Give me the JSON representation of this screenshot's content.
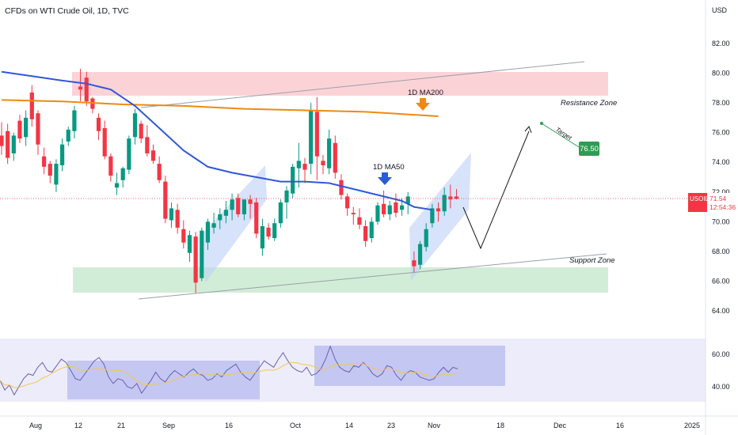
{
  "chart_data": {
    "type": "candlestick",
    "title": "CFDs on WTI Crude Oil, 1D, TVC",
    "currency_label": "USD",
    "price_axis": {
      "ticks": [
        "82.00",
        "80.00",
        "78.00",
        "76.00",
        "74.00",
        "72.00",
        "70.00",
        "68.00",
        "66.00",
        "64.00"
      ],
      "range": [
        62.5,
        84.0
      ]
    },
    "rsi_axis": {
      "ticks": [
        "60.00",
        "40.00"
      ]
    },
    "x_ticks": [
      "Aug",
      "12",
      "21",
      "Sep",
      "16",
      "Oct",
      "14",
      "23",
      "Nov",
      "18",
      "Dec",
      "16",
      "2025"
    ],
    "last_price": {
      "symbol": "USOIL",
      "price": "71.54",
      "countdown": "12:54:36"
    },
    "annotations": {
      "resistance_zone": {
        "label": "Resistance Zone",
        "range": [
          78.45,
          80.05
        ]
      },
      "support_zone": {
        "label": "Support Zone",
        "range": [
          65.25,
          66.95
        ]
      },
      "ma200_label": "1D MA200",
      "ma50_label": "1D MA50",
      "target_label": "Target",
      "target_price": "76.50"
    },
    "series": [
      {
        "name": "1D MA200",
        "color": "#f0890f",
        "values": [
          [
            0,
            78.2
          ],
          [
            10,
            78.1
          ],
          [
            20,
            77.9
          ],
          [
            30,
            77.8
          ],
          [
            40,
            77.6
          ],
          [
            50,
            77.5
          ],
          [
            60,
            77.4
          ],
          [
            72,
            77.1
          ]
        ]
      },
      {
        "name": "1D MA50",
        "color": "#3058d8",
        "values": [
          [
            0,
            80.1
          ],
          [
            5,
            79.8
          ],
          [
            10,
            79.5
          ],
          [
            14,
            79.3
          ],
          [
            18,
            78.9
          ],
          [
            22,
            77.8
          ],
          [
            26,
            76.3
          ],
          [
            30,
            74.8
          ],
          [
            34,
            73.7
          ],
          [
            38,
            73.3
          ],
          [
            42,
            73.0
          ],
          [
            46,
            72.7
          ],
          [
            50,
            72.7
          ],
          [
            54,
            72.6
          ],
          [
            58,
            72.2
          ],
          [
            62,
            71.8
          ],
          [
            66,
            71.4
          ],
          [
            68,
            71.0
          ],
          [
            71,
            70.8
          ]
        ]
      }
    ],
    "ohlc": [
      [
        75.8,
        76.7,
        74.5,
        75.1
      ],
      [
        76.1,
        76.6,
        73.9,
        74.3
      ],
      [
        74.6,
        76.0,
        74.1,
        75.8
      ],
      [
        76.8,
        77.2,
        75.3,
        75.6
      ],
      [
        75.7,
        77.5,
        75.1,
        77.0
      ],
      [
        78.7,
        79.2,
        76.4,
        76.9
      ],
      [
        77.3,
        77.5,
        74.5,
        75.2
      ],
      [
        74.4,
        75.0,
        73.2,
        73.7
      ],
      [
        73.9,
        74.1,
        72.6,
        73.1
      ],
      [
        72.5,
        74.2,
        72.0,
        73.9
      ],
      [
        73.8,
        75.6,
        73.4,
        75.2
      ],
      [
        75.4,
        76.4,
        75.1,
        76.2
      ],
      [
        76.1,
        77.8,
        75.6,
        77.5
      ],
      [
        79.1,
        80.3,
        78.1,
        78.9
      ],
      [
        79.7,
        80.1,
        77.8,
        78.1
      ],
      [
        78.3,
        78.4,
        77.3,
        77.6
      ],
      [
        77.0,
        77.3,
        75.5,
        76.1
      ],
      [
        76.3,
        76.8,
        74.2,
        74.4
      ],
      [
        74.4,
        74.6,
        72.7,
        73.1
      ],
      [
        72.3,
        73.3,
        71.8,
        72.6
      ],
      [
        72.8,
        73.7,
        72.3,
        73.6
      ],
      [
        73.5,
        75.8,
        73.2,
        75.6
      ],
      [
        75.7,
        77.6,
        75.2,
        77.3
      ],
      [
        76.6,
        76.8,
        75.3,
        75.6
      ],
      [
        75.7,
        76.5,
        74.4,
        74.6
      ],
      [
        74.8,
        75.2,
        73.9,
        74.1
      ],
      [
        73.9,
        74.4,
        72.6,
        72.8
      ],
      [
        72.7,
        73.1,
        69.9,
        70.2
      ],
      [
        70.1,
        71.3,
        69.6,
        70.9
      ],
      [
        70.8,
        71.2,
        69.2,
        69.6
      ],
      [
        69.5,
        70.1,
        68.2,
        68.6
      ],
      [
        67.9,
        69.4,
        67.3,
        69.1
      ],
      [
        69.0,
        69.3,
        65.2,
        65.9
      ],
      [
        66.2,
        69.6,
        66.0,
        69.4
      ],
      [
        68.6,
        70.2,
        68.1,
        70.0
      ],
      [
        69.6,
        70.6,
        69.2,
        69.9
      ],
      [
        70.1,
        70.9,
        69.5,
        70.5
      ],
      [
        70.4,
        71.4,
        69.9,
        70.8
      ],
      [
        70.8,
        71.9,
        70.1,
        71.5
      ],
      [
        71.6,
        71.9,
        70.3,
        70.5
      ],
      [
        70.5,
        71.5,
        70.1,
        71.5
      ],
      [
        71.5,
        71.8,
        70.2,
        71.2
      ],
      [
        71.3,
        71.6,
        68.9,
        69.2
      ],
      [
        68.2,
        70.2,
        67.7,
        69.7
      ],
      [
        69.6,
        69.9,
        68.8,
        69.0
      ],
      [
        68.9,
        70.2,
        68.7,
        69.9
      ],
      [
        69.9,
        71.5,
        69.6,
        71.3
      ],
      [
        71.3,
        72.4,
        70.2,
        72.1
      ],
      [
        71.9,
        73.9,
        71.6,
        73.7
      ],
      [
        73.6,
        75.3,
        72.3,
        74.1
      ],
      [
        73.9,
        74.3,
        72.6,
        73.5
      ],
      [
        73.9,
        78.0,
        73.2,
        77.5
      ],
      [
        77.4,
        78.4,
        72.8,
        74.4
      ],
      [
        74.1,
        74.5,
        73.2,
        73.8
      ],
      [
        73.6,
        76.2,
        73.2,
        75.6
      ],
      [
        75.3,
        75.8,
        72.9,
        73.3
      ],
      [
        72.8,
        73.2,
        71.5,
        71.8
      ],
      [
        71.7,
        71.9,
        70.4,
        70.9
      ],
      [
        70.6,
        71.0,
        69.8,
        70.5
      ],
      [
        70.3,
        70.9,
        69.5,
        69.8
      ],
      [
        69.7,
        70.1,
        68.3,
        68.7
      ],
      [
        68.9,
        70.3,
        68.6,
        70.0
      ],
      [
        70.0,
        71.3,
        69.8,
        71.1
      ],
      [
        71.2,
        72.1,
        70.3,
        70.5
      ],
      [
        70.5,
        71.4,
        70.1,
        71.1
      ],
      [
        71.3,
        71.9,
        70.3,
        70.6
      ],
      [
        70.8,
        71.6,
        70.4,
        71.1
      ],
      [
        71.2,
        72.0,
        70.5,
        71.7
      ],
      [
        67.4,
        68.0,
        66.6,
        67.0
      ],
      [
        67.1,
        68.7,
        66.8,
        68.5
      ],
      [
        68.3,
        69.9,
        68.0,
        69.5
      ],
      [
        69.9,
        71.2,
        69.6,
        70.9
      ],
      [
        70.9,
        71.3,
        70.0,
        70.7
      ],
      [
        70.7,
        72.3,
        70.4,
        71.8
      ],
      [
        71.7,
        72.5,
        70.9,
        71.5
      ],
      [
        71.7,
        72.2,
        71.5,
        71.54
      ]
    ],
    "rsi": {
      "values": [
        44,
        38,
        41,
        35,
        40,
        45,
        48,
        47,
        52,
        55,
        50,
        49,
        53,
        57,
        55,
        50,
        45,
        44,
        48,
        52,
        56,
        58,
        54,
        46,
        42,
        45,
        44,
        40,
        39,
        42,
        36,
        40,
        44,
        49,
        45,
        43,
        47,
        50,
        48,
        46,
        49,
        51,
        48,
        47,
        44,
        45,
        48,
        46,
        50,
        52,
        54,
        49,
        46,
        44,
        48,
        52,
        56,
        54,
        52,
        57,
        61,
        56,
        52,
        50,
        49,
        52,
        47,
        48,
        51,
        57,
        65,
        57,
        52,
        50,
        49,
        53,
        52,
        55,
        52,
        48,
        46,
        48,
        53,
        52,
        47,
        44,
        48,
        50,
        49,
        46,
        45,
        44,
        45,
        49,
        52,
        49,
        52,
        51
      ]
    }
  }
}
